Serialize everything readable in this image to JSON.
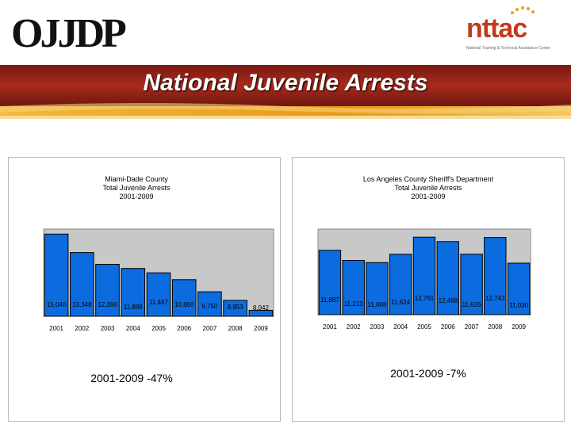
{
  "slide_title": "National Juvenile Arrests",
  "logos": {
    "ojjdp": "OJJDP",
    "nttac": "nttac",
    "nttac_tagline": "National Training & Technical Assistance Center"
  },
  "colors": {
    "bar_fill": "#0b6ce0",
    "bar_stroke": "#000000",
    "plot_bg": "#c8c8c8",
    "banner_red": "#9a2418",
    "banner_orange": "#e8a21d"
  },
  "chart_data": [
    {
      "type": "bar",
      "title_lines": [
        "Miami-Dade County",
        "Total Juvenile Arrests",
        "2001-2009"
      ],
      "categories": [
        "2001",
        "2002",
        "2003",
        "2004",
        "2005",
        "2006",
        "2007",
        "2008",
        "2009"
      ],
      "values": [
        15040,
        13348,
        12266,
        11888,
        11487,
        10860,
        9750,
        8953,
        8042
      ],
      "value_labels": [
        "15,040",
        "13,348",
        "12,266",
        "11,888",
        "11,487",
        "10,860",
        "9,750",
        "8,953",
        "8,042"
      ],
      "ylim": [
        7500,
        15500
      ],
      "change_text": "2001-2009  -47%"
    },
    {
      "type": "bar",
      "title_lines": [
        "Los Angeles County Sheriff's Department",
        "Total Juvenile Arrests",
        "2001-2009"
      ],
      "categories": [
        "2001",
        "2002",
        "2003",
        "2004",
        "2005",
        "2006",
        "2007",
        "2008",
        "2009"
      ],
      "values": [
        11887,
        11213,
        11068,
        11624,
        12761,
        12468,
        11626,
        12743,
        11030
      ],
      "value_labels": [
        "11,887",
        "11,213",
        "11,068",
        "11,624",
        "12,761",
        "12,468",
        "11,626",
        "12,743",
        "11,030"
      ],
      "ylim": [
        7600,
        13300
      ],
      "change_text": "2001-2009  -7%"
    }
  ]
}
